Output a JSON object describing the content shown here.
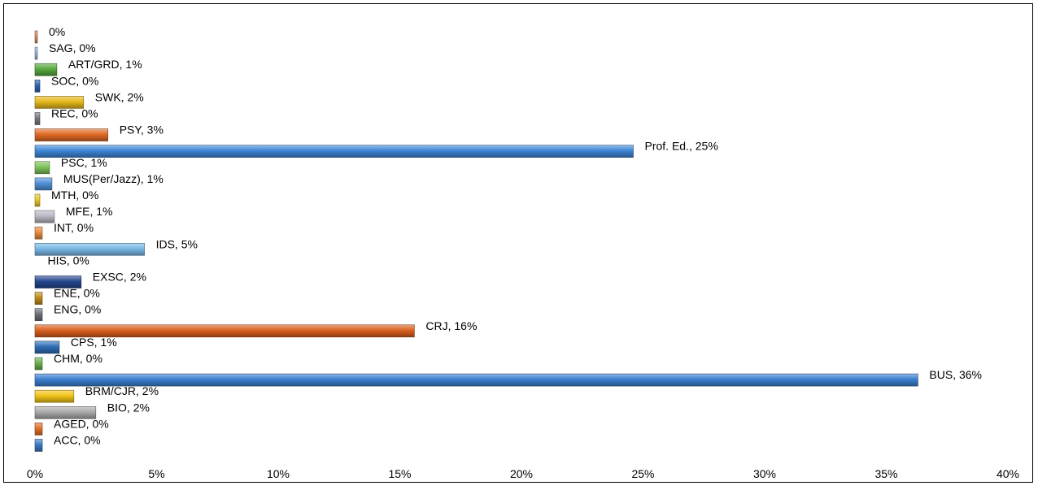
{
  "chart_data": {
    "type": "bar",
    "orientation": "horizontal",
    "categories": [
      "ACC",
      "AGED",
      "BIO",
      "BRM/CJR",
      "BUS",
      "CHM",
      "CPS",
      "CRJ",
      "ENG",
      "ENE",
      "EXSC",
      "HIS",
      "IDS",
      "INT",
      "MFE",
      "MTH",
      "MUS(Per/Jazz)",
      "PSC",
      "Prof. Ed.",
      "PSY",
      "REC",
      "SWK",
      "SOC",
      "ART/GRD",
      "SAG",
      ""
    ],
    "values": [
      0.3,
      0.3,
      2.5,
      1.6,
      36.3,
      0.3,
      1.0,
      15.6,
      0.3,
      0.3,
      1.9,
      0.0,
      4.5,
      0.3,
      0.8,
      0.2,
      0.7,
      0.6,
      24.6,
      3.0,
      0.2,
      2.0,
      0.2,
      0.9,
      0.1,
      0.1
    ],
    "data_labels": [
      "ACC, 0%",
      "AGED, 0%",
      "BIO, 2%",
      "BRM/CJR, 2%",
      "BUS, 36%",
      "CHM, 0%",
      "CPS, 1%",
      "CRJ, 16%",
      "ENG, 0%",
      "ENE, 0%",
      "EXSC, 2%",
      "HIS, 0%",
      "IDS, 5%",
      "INT, 0%",
      "MFE, 1%",
      "MTH, 0%",
      "MUS(Per/Jazz), 1%",
      "PSC, 1%",
      "Prof. Ed., 25%",
      "PSY, 3%",
      "REC, 0%",
      "SWK, 2%",
      "SOC, 0%",
      "ART/GRD, 1%",
      "SAG, 0%",
      "0%"
    ],
    "colors": [
      "#3a78c2",
      "#e07028",
      "#a9a9a9",
      "#f2c418",
      "#3a7fd0",
      "#6ab04c",
      "#2e6db4",
      "#d9601e",
      "#6d7178",
      "#c08a1a",
      "#23468e",
      "#ffffff",
      "#7ab8e6",
      "#e98c40",
      "#b8b8c4",
      "#e8c82a",
      "#4f8fd8",
      "#7cc35a",
      "#3d86d6",
      "#e06a24",
      "#7a7a86",
      "#e6b81c",
      "#2f63b0",
      "#58a83e",
      "#9ab4de",
      "#d98c60"
    ],
    "xlim": [
      0,
      40
    ],
    "x_ticks": [
      "0%",
      "5%",
      "10%",
      "15%",
      "20%",
      "25%",
      "30%",
      "35%",
      "40%"
    ],
    "title": "",
    "xlabel": "",
    "ylabel": "",
    "grid": false,
    "legend": "none"
  }
}
